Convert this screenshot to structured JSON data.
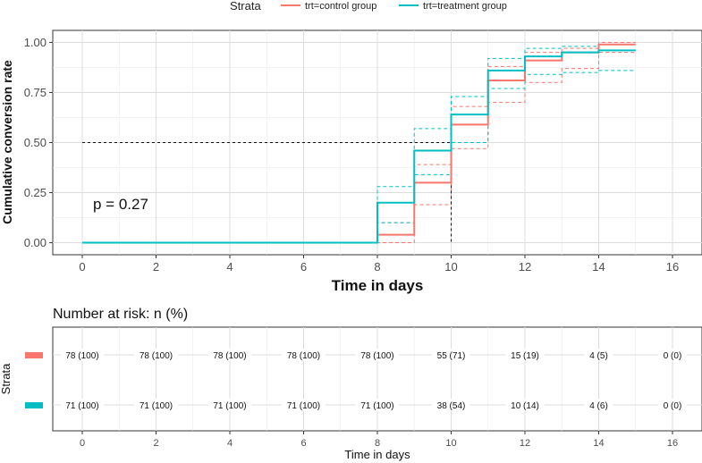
{
  "legend": {
    "title": "Strata",
    "items": [
      {
        "label": "trt=control group",
        "color": "#F8766D"
      },
      {
        "label": "trt=treatment group",
        "color": "#00BFC4"
      }
    ]
  },
  "chart_data": [
    {
      "type": "line",
      "subtype": "step",
      "title": "",
      "xlabel": "Time in days",
      "ylabel": "Cumulative conversion rate",
      "xlim": [
        -0.8,
        16.8
      ],
      "ylim": [
        -0.06,
        1.06
      ],
      "xticks": [
        "0",
        "2",
        "4",
        "6",
        "8",
        "10",
        "12",
        "14",
        "16"
      ],
      "yticks": [
        "0.00",
        "0.25",
        "0.50",
        "0.75",
        "1.00"
      ],
      "grid": true,
      "legend_position": "top",
      "annotation": "p = 0.27",
      "median_line": {
        "y": 0.5,
        "x": 10
      },
      "series": [
        {
          "name": "trt=control group",
          "color": "#F8766D",
          "x": [
            0,
            8,
            9,
            10,
            11,
            12,
            13,
            14,
            15
          ],
          "y": [
            0,
            0.04,
            0.3,
            0.59,
            0.81,
            0.91,
            0.95,
            0.99,
            0.99
          ],
          "upper": [
            0,
            0.1,
            0.39,
            0.68,
            0.88,
            0.95,
            0.97,
            1.0,
            1.0
          ],
          "lower": [
            0,
            0.0,
            0.19,
            0.47,
            0.7,
            0.8,
            0.87,
            0.95,
            0.95
          ]
        },
        {
          "name": "trt=treatment group",
          "color": "#00BFC4",
          "x": [
            0,
            8,
            9,
            10,
            11,
            12,
            13,
            14,
            15
          ],
          "y": [
            0,
            0.2,
            0.46,
            0.64,
            0.86,
            0.93,
            0.95,
            0.96,
            0.96
          ],
          "upper": [
            0,
            0.28,
            0.57,
            0.73,
            0.92,
            0.97,
            0.98,
            0.99,
            0.99
          ],
          "lower": [
            0,
            0.1,
            0.34,
            0.5,
            0.77,
            0.84,
            0.85,
            0.86,
            0.86
          ]
        }
      ]
    },
    {
      "type": "table",
      "title": "Number at risk: n (%)",
      "ylabel": "Strata",
      "xlabel": "Time in days",
      "xticks": [
        "0",
        "2",
        "4",
        "6",
        "8",
        "10",
        "12",
        "14",
        "16"
      ],
      "rows": [
        {
          "name": "trt=control group",
          "color": "#F8766D",
          "values": [
            "78 (100)",
            "78 (100)",
            "78 (100)",
            "78 (100)",
            "78 (100)",
            "55 (71)",
            "15 (19)",
            "4 (5)",
            "0 (0)"
          ]
        },
        {
          "name": "trt=treatment group",
          "color": "#00BFC4",
          "values": [
            "71 (100)",
            "71 (100)",
            "71 (100)",
            "71 (100)",
            "71 (100)",
            "38 (54)",
            "10 (14)",
            "4 (6)",
            "0 (0)"
          ]
        }
      ]
    }
  ]
}
